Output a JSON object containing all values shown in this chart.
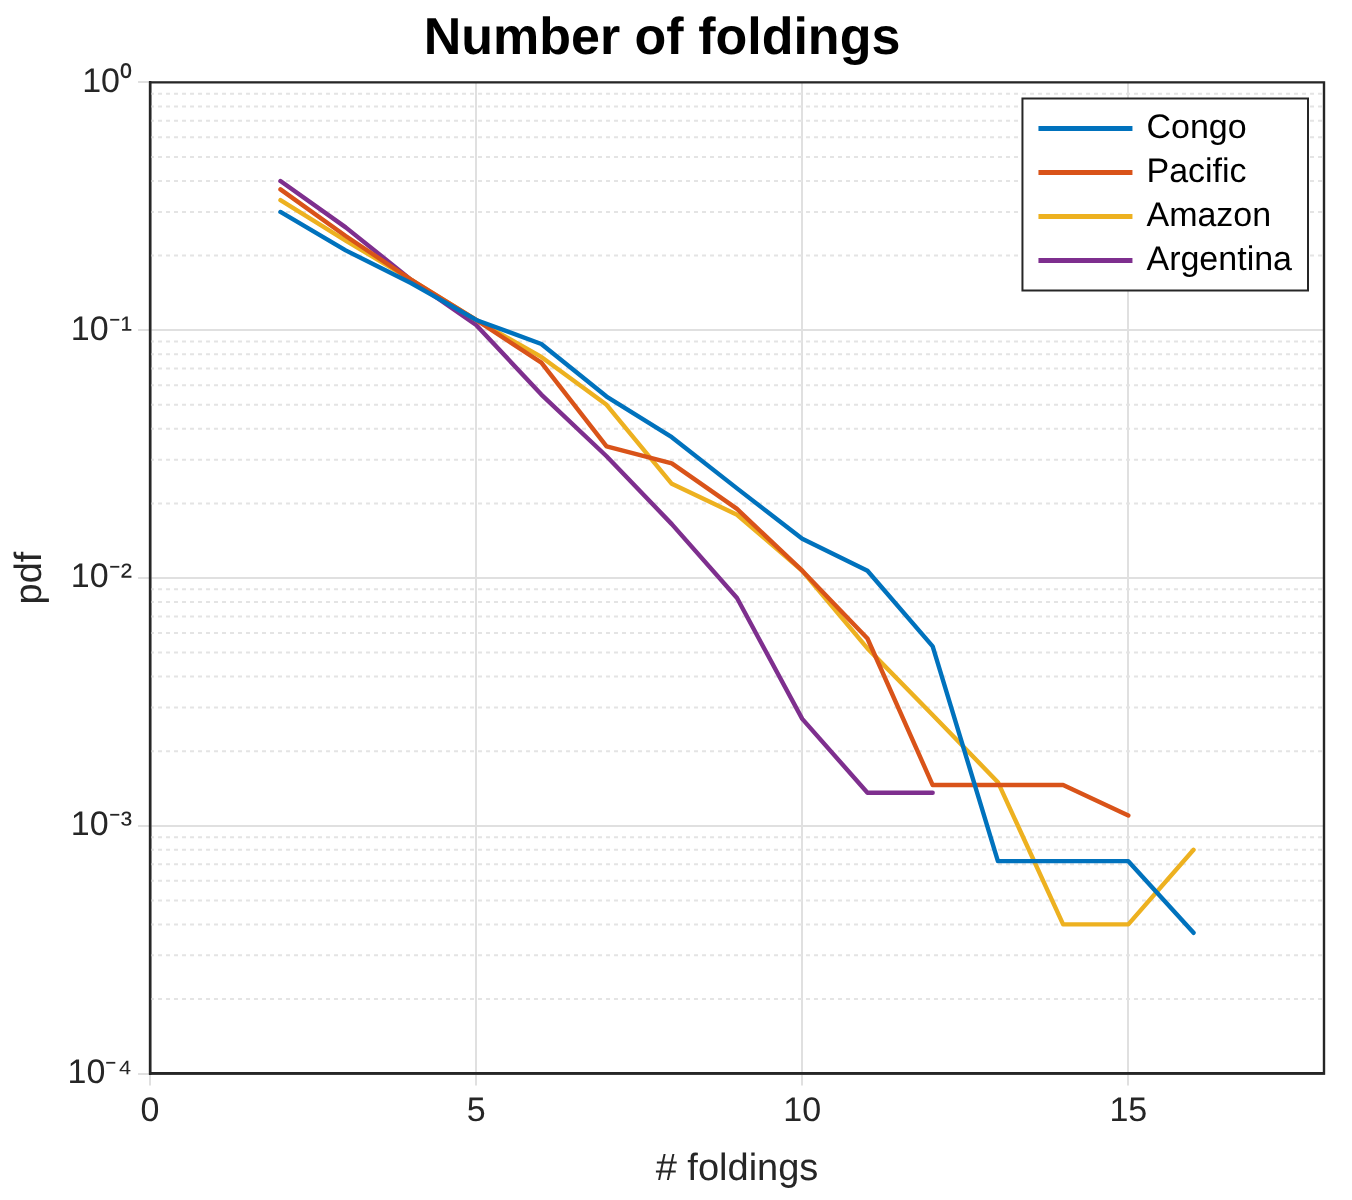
{
  "chart_data": {
    "type": "line",
    "title": "Number of foldings",
    "xlabel": "# foldings",
    "ylabel": "pdf",
    "log": "y",
    "grid": true,
    "legend": "top right",
    "xlim": [
      0,
      18
    ],
    "xticks": [
      0,
      5,
      10,
      15
    ],
    "ylim": [
      0.0001,
      1
    ],
    "yticks": [
      {
        "value": 0.0001,
        "label": "10⁻⁴"
      },
      {
        "value": 0.001,
        "label": "10⁻³"
      },
      {
        "value": 0.01,
        "label": "10⁻²"
      },
      {
        "value": 0.1,
        "label": "10⁻¹"
      },
      {
        "value": 1,
        "label": "10⁰"
      }
    ],
    "series": [
      {
        "name": "Congo",
        "color": "#0072bd",
        "x": [
          2,
          3,
          4,
          5,
          6,
          7,
          8,
          9,
          10,
          11,
          12,
          13,
          14,
          15,
          16
        ],
        "values": [
          0.3,
          0.21,
          0.155,
          0.11,
          0.088,
          0.054,
          0.037,
          0.023,
          0.0144,
          0.0107,
          0.0053,
          0.00072,
          0.00072,
          0.00072,
          0.00037
        ]
      },
      {
        "name": "Pacific",
        "color": "#d95319",
        "x": [
          2,
          3,
          4,
          5,
          6,
          7,
          8,
          9,
          10,
          11,
          12,
          13,
          14,
          15
        ],
        "values": [
          0.37,
          0.24,
          0.16,
          0.11,
          0.074,
          0.034,
          0.029,
          0.019,
          0.0107,
          0.0057,
          0.00146,
          0.00146,
          0.00146,
          0.0011
        ]
      },
      {
        "name": "Amazon",
        "color": "#edb120",
        "x": [
          2,
          3,
          4,
          5,
          6,
          7,
          8,
          9,
          10,
          11,
          12,
          13,
          14,
          15,
          16
        ],
        "values": [
          0.335,
          0.23,
          0.16,
          0.11,
          0.078,
          0.05,
          0.024,
          0.018,
          0.0107,
          0.0052,
          0.0028,
          0.0015,
          0.0004,
          0.0004,
          0.0008
        ]
      },
      {
        "name": "Argentina",
        "color": "#7e2f8e",
        "x": [
          2,
          3,
          4,
          5,
          6,
          7,
          8,
          9,
          10,
          11,
          12
        ],
        "values": [
          0.4,
          0.26,
          0.16,
          0.105,
          0.055,
          0.031,
          0.0165,
          0.0083,
          0.0027,
          0.00136,
          0.00136
        ]
      }
    ]
  }
}
